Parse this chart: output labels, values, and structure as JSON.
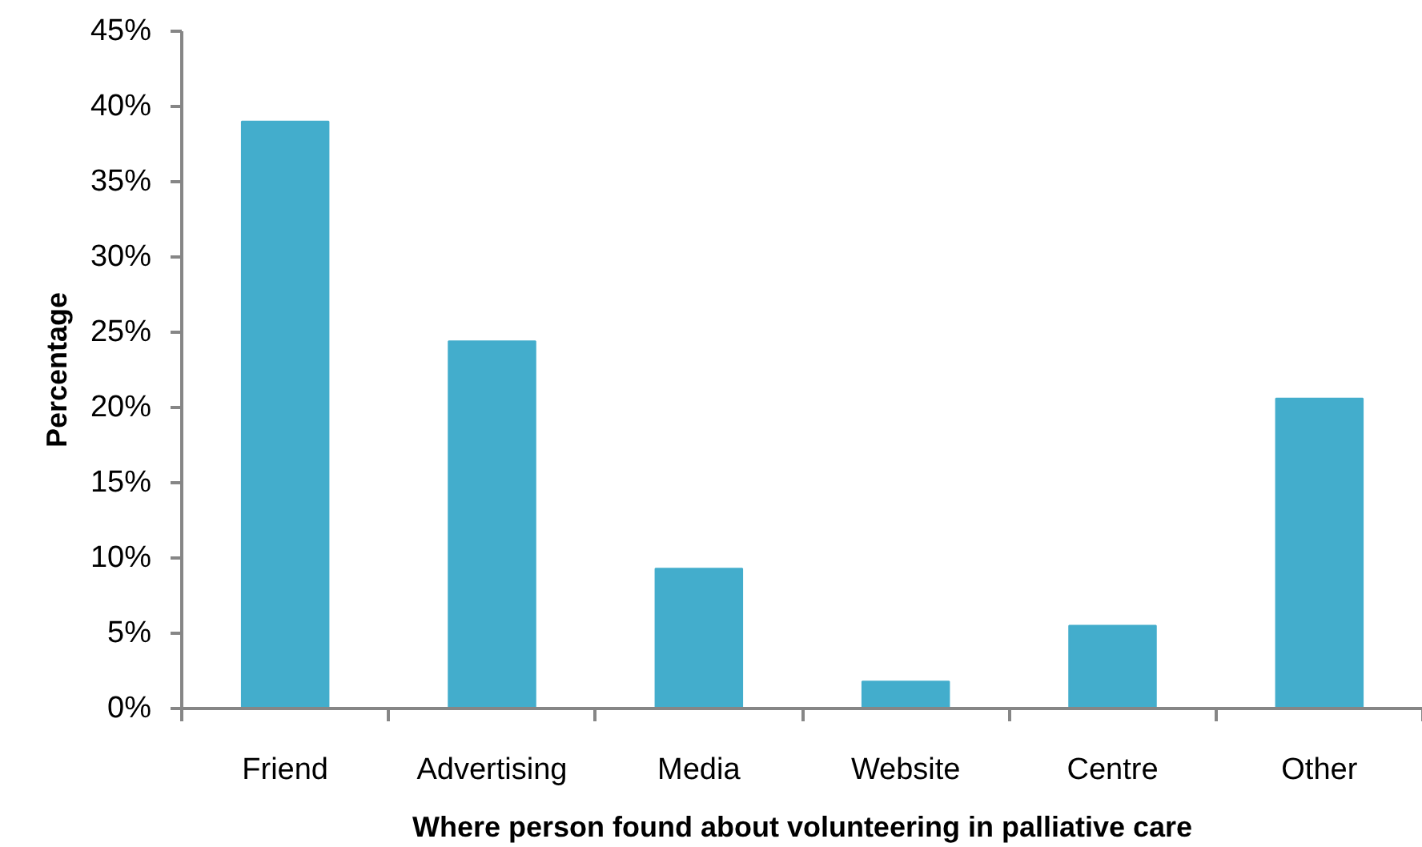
{
  "chart_data": {
    "type": "bar",
    "xlabel": "Where person found about volunteering in palliative care",
    "ylabel": "Percentage",
    "categories": [
      "Friend",
      "Advertising",
      "Media",
      "Website",
      "Centre",
      "Other"
    ],
    "values": [
      39,
      24.4,
      9.3,
      1.8,
      5.5,
      20.6
    ],
    "color": "#43adcc",
    "ylim": [
      0,
      45
    ],
    "yticks": [
      {
        "value": 0,
        "label": "0%"
      },
      {
        "value": 5,
        "label": "5%"
      },
      {
        "value": 10,
        "label": "10%"
      },
      {
        "value": 15,
        "label": "15%"
      },
      {
        "value": 20,
        "label": "20%"
      },
      {
        "value": 25,
        "label": "25%"
      },
      {
        "value": 30,
        "label": "30%"
      },
      {
        "value": 35,
        "label": "35%"
      },
      {
        "value": 40,
        "label": "40%"
      },
      {
        "value": 45,
        "label": "45%"
      }
    ]
  }
}
